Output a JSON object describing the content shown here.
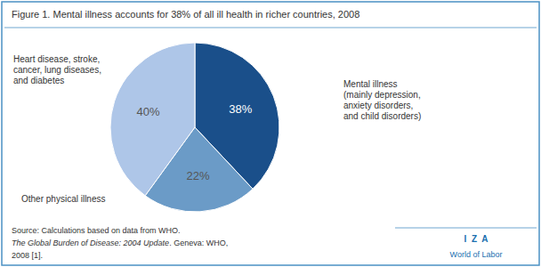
{
  "chart_data": {
    "type": "pie",
    "title": "Figure 1. Mental illness accounts for 38% of all ill health in richer countries, 2008",
    "categories": [
      "Mental illness\n(mainly depression,\nanxiety disorders,\nand child disorders)",
      "Other physical illness",
      "Heart disease, stroke,\ncancer, lung diseases,\nand diabetes"
    ],
    "values": [
      38,
      22,
      40
    ],
    "value_labels": [
      "38%",
      "22%",
      "40%"
    ],
    "data_labels": true,
    "colors": [
      "#1a4f8a",
      "#6b9bc7",
      "#aec6e8"
    ],
    "annotations": [
      "Source: Calculations based on data from WHO.",
      "The Global Burden of Disease: 2004 Update",
      ". Geneva: WHO,",
      "2008 [1].",
      "I  Z  A",
      "World of Labor"
    ]
  }
}
